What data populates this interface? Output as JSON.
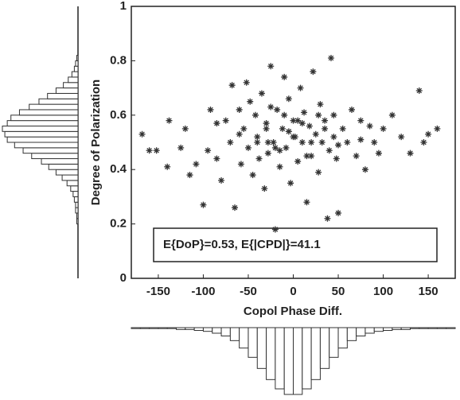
{
  "chart_data": [
    {
      "type": "scatter",
      "xlabel": "Copol Phase Diff.",
      "ylabel": "Degree of Polarization",
      "annotation": "E{DoP}=0.53, E{|CPD|}=41.1",
      "color": "#333333",
      "xlim": [
        -180,
        180
      ],
      "xticks": [
        -150,
        -100,
        -50,
        0,
        50,
        100,
        150
      ],
      "ylim": [
        0,
        1
      ],
      "yticks": [
        0,
        0.2,
        0.4,
        0.6,
        0.8,
        1
      ],
      "x": [
        -168,
        -160,
        -152,
        -140,
        -138,
        -125,
        -120,
        -115,
        -108,
        -100,
        -95,
        -92,
        -85,
        -80,
        -75,
        -70,
        -68,
        -65,
        -60,
        -58,
        -55,
        -52,
        -50,
        -48,
        -45,
        -42,
        -40,
        -38,
        -35,
        -32,
        -30,
        -28,
        -25,
        -22,
        -20,
        -18,
        -15,
        -12,
        -10,
        -8,
        -5,
        -3,
        0,
        2,
        5,
        8,
        10,
        12,
        15,
        18,
        20,
        22,
        25,
        28,
        30,
        32,
        35,
        38,
        40,
        42,
        45,
        48,
        50,
        55,
        60,
        65,
        70,
        75,
        80,
        85,
        90,
        95,
        100,
        110,
        120,
        130,
        140,
        145,
        150,
        160,
        -30,
        -20,
        -10,
        0,
        10,
        20,
        -25,
        15,
        -5,
        5,
        -40,
        35,
        -60,
        50,
        -85,
        75,
        -28,
        28,
        -15,
        45
      ],
      "y": [
        0.53,
        0.47,
        0.47,
        0.41,
        0.58,
        0.48,
        0.55,
        0.38,
        0.42,
        0.27,
        0.47,
        0.62,
        0.44,
        0.36,
        0.58,
        0.5,
        0.71,
        0.26,
        0.62,
        0.42,
        0.55,
        0.72,
        0.48,
        0.65,
        0.38,
        0.6,
        0.52,
        0.44,
        0.68,
        0.33,
        0.57,
        0.46,
        0.78,
        0.5,
        0.18,
        0.62,
        0.41,
        0.55,
        0.74,
        0.48,
        0.66,
        0.35,
        0.58,
        0.52,
        0.43,
        0.7,
        0.5,
        0.61,
        0.28,
        0.56,
        0.45,
        0.76,
        0.53,
        0.39,
        0.64,
        0.5,
        0.58,
        0.22,
        0.47,
        0.81,
        0.6,
        0.44,
        0.24,
        0.55,
        0.5,
        0.62,
        0.45,
        0.58,
        0.4,
        0.56,
        0.5,
        0.46,
        0.55,
        0.6,
        0.52,
        0.46,
        0.69,
        0.5,
        0.53,
        0.55,
        0.55,
        0.48,
        0.6,
        0.52,
        0.57,
        0.5,
        0.63,
        0.45,
        0.54,
        0.58,
        0.5,
        0.55,
        0.53,
        0.49,
        0.57,
        0.51,
        0.5,
        0.6,
        0.47,
        0.52
      ]
    },
    {
      "type": "histogram",
      "orientation": "horizontal",
      "bins": [
        0.2,
        0.22,
        0.24,
        0.26,
        0.28,
        0.3,
        0.32,
        0.34,
        0.36,
        0.38,
        0.4,
        0.42,
        0.44,
        0.46,
        0.48,
        0.5,
        0.52,
        0.54,
        0.56,
        0.58,
        0.6,
        0.62,
        0.64,
        0.66,
        0.68,
        0.7,
        0.72,
        0.74,
        0.76,
        0.78,
        0.8,
        0.82
      ],
      "counts": [
        1,
        1,
        2,
        2,
        3,
        4,
        6,
        9,
        13,
        18,
        24,
        30,
        38,
        45,
        52,
        58,
        60,
        62,
        58,
        55,
        48,
        40,
        32,
        25,
        18,
        12,
        8,
        5,
        3,
        2,
        1
      ]
    },
    {
      "type": "histogram",
      "orientation": "vertical",
      "bins": [
        -180,
        -170,
        -160,
        -150,
        -140,
        -130,
        -120,
        -110,
        -100,
        -90,
        -80,
        -70,
        -60,
        -50,
        -40,
        -30,
        -20,
        -10,
        0,
        10,
        20,
        30,
        40,
        50,
        60,
        70,
        80,
        90,
        100,
        110,
        120,
        130,
        140,
        150,
        160,
        170,
        180
      ],
      "counts": [
        1,
        1,
        1,
        1,
        1,
        2,
        2,
        3,
        4,
        6,
        9,
        14,
        22,
        32,
        44,
        56,
        66,
        72,
        72,
        66,
        56,
        44,
        32,
        22,
        14,
        9,
        6,
        4,
        3,
        2,
        2,
        1,
        1,
        1,
        1,
        1
      ]
    }
  ]
}
